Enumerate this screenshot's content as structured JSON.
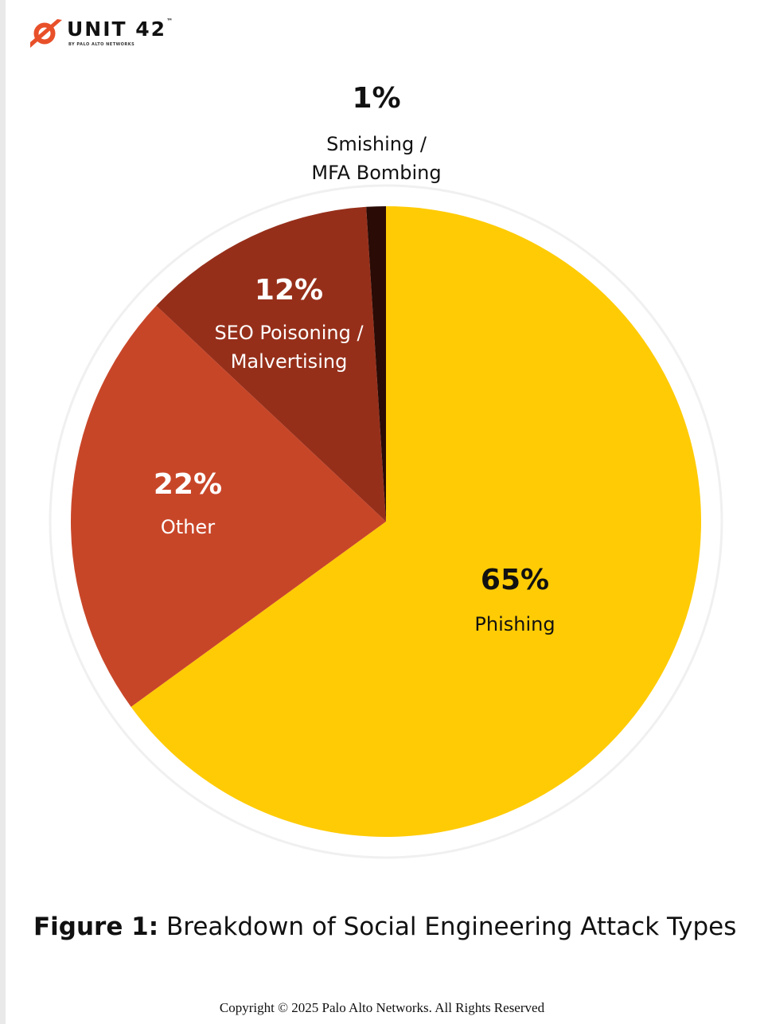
{
  "brand": {
    "name": "UNIT 42",
    "trademark": "™",
    "byline": "BY PALO ALTO NETWORKS"
  },
  "caption": {
    "prefix": "Figure 1:",
    "text": "Breakdown of Social Engineering Attack Types"
  },
  "copyright": "Copyright © 2025 Palo Alto Networks. All Rights Reserved",
  "chart_data": {
    "type": "pie",
    "start_angle_deg": 0,
    "direction": "clockwise",
    "ring": true,
    "legend": "none",
    "slices": [
      {
        "label": "Phishing",
        "value": 65,
        "value_label": "65%",
        "color": "#FFCB05",
        "text_color": "#111111"
      },
      {
        "label": "Other",
        "value": 22,
        "value_label": "22%",
        "color": "#C84628",
        "text_color": "#FFFFFF"
      },
      {
        "label": "SEO Poisoning / Malvertising",
        "label_lines": [
          "SEO Poisoning /",
          "Malvertising"
        ],
        "value": 12,
        "value_label": "12%",
        "color": "#962F1A",
        "text_color": "#FFFFFF"
      },
      {
        "label": "Smishing / MFA Bombing",
        "label_lines": [
          "Smishing /",
          "MFA Bombing"
        ],
        "value": 1,
        "value_label": "1%",
        "color": "#2A0B05",
        "text_color": "#111111"
      }
    ]
  }
}
